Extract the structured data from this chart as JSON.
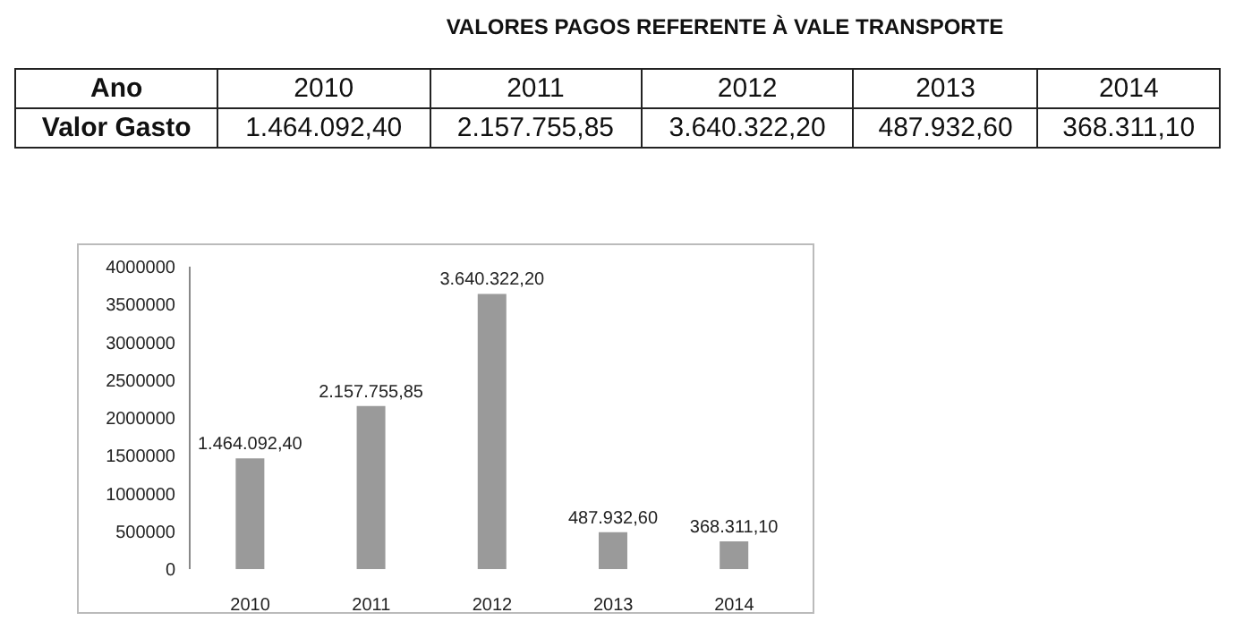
{
  "chart_data": {
    "type": "bar",
    "title": "VALORES PAGOS REFERENTE À VALE TRANSPORTE",
    "annotations": [
      "Ano",
      "Valor Gasto"
    ],
    "categories": [
      "2010",
      "2011",
      "2012",
      "2013",
      "2014"
    ],
    "values": [
      1464092.4,
      2157755.85,
      3640322.2,
      487932.6,
      368311.1
    ],
    "value_labels": [
      "1.464.092,40",
      "2.157.755,85",
      "3.640.322,20",
      "487.932,60",
      "368.311,10"
    ],
    "color": "#9a9a9a",
    "ylim": [
      0,
      4000000
    ],
    "yticks": [
      0,
      500000,
      1000000,
      1500000,
      2000000,
      2500000,
      3000000,
      3500000,
      4000000
    ],
    "grid": false
  }
}
